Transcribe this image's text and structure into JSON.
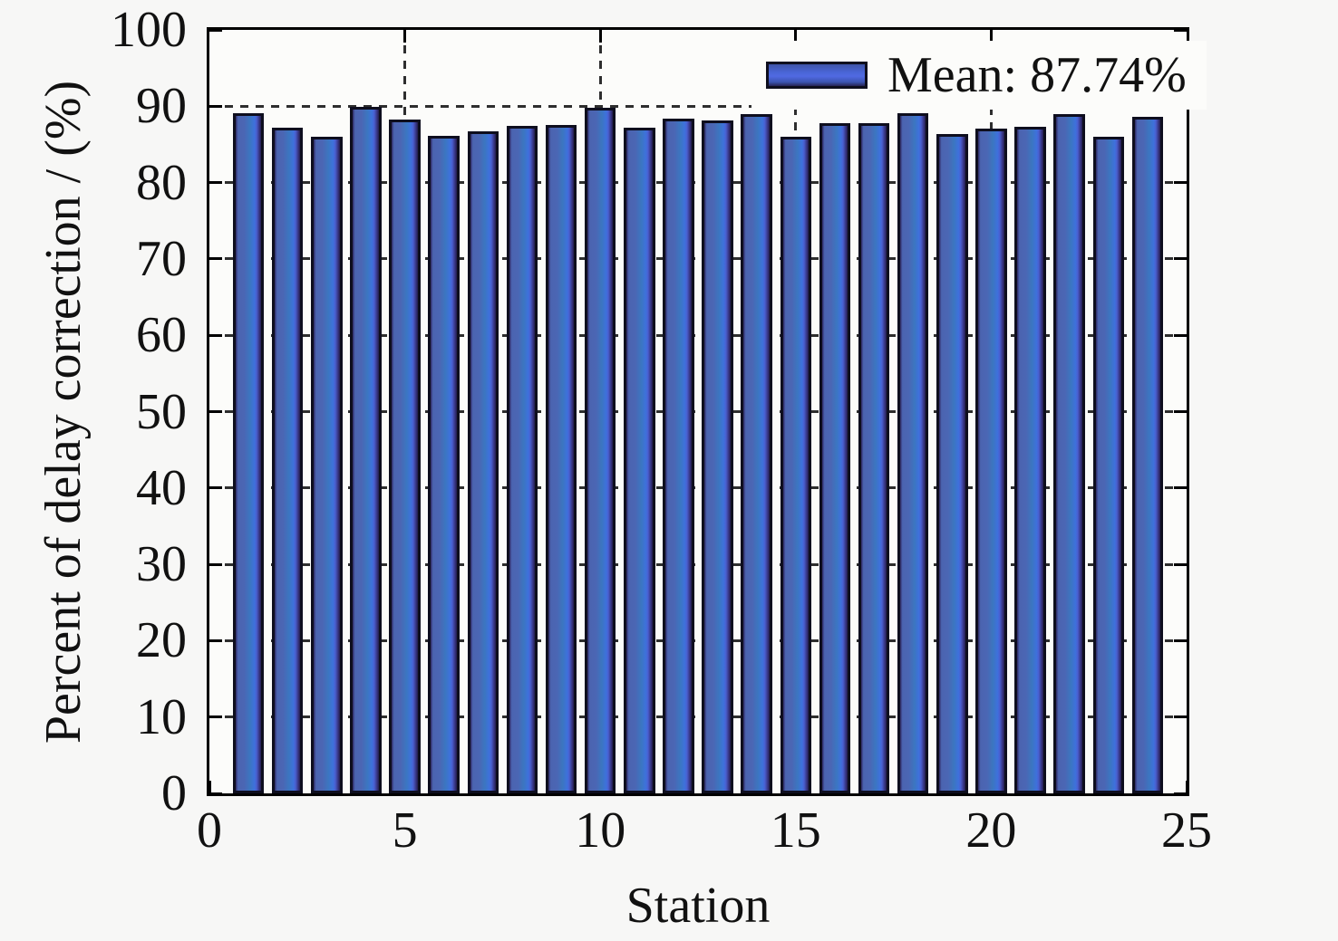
{
  "page_background": "#f7f7f6",
  "chart_data": {
    "type": "bar",
    "title": "",
    "xlabel": "Station",
    "ylabel": "Percent of delay correction / (%)",
    "xlim": [
      0,
      25
    ],
    "ylim": [
      0,
      100
    ],
    "x_ticks": [
      0,
      5,
      10,
      15,
      20,
      25
    ],
    "y_ticks": [
      0,
      10,
      20,
      30,
      40,
      50,
      60,
      70,
      80,
      90,
      100
    ],
    "grid": {
      "style": "dashed",
      "color": "#2e2e2e",
      "x_lines": [
        5,
        10,
        15,
        20
      ],
      "y_lines": [
        10,
        20,
        30,
        40,
        50,
        60,
        70,
        80,
        90
      ],
      "drawn_behind_bars": true
    },
    "bar_width_units": 0.8,
    "categories": [
      1,
      2,
      3,
      4,
      5,
      6,
      7,
      8,
      9,
      10,
      11,
      12,
      13,
      14,
      15,
      16,
      17,
      18,
      19,
      20,
      21,
      22,
      23,
      24
    ],
    "values": [
      89.1,
      87.2,
      86.0,
      89.9,
      88.2,
      86.1,
      86.7,
      87.4,
      87.6,
      89.8,
      87.2,
      88.4,
      88.1,
      89.0,
      86.0,
      87.8,
      87.8,
      89.1,
      86.4,
      87.1,
      87.3,
      89.0,
      86.0,
      88.6
    ],
    "mean": 87.74,
    "legend": {
      "label": "Mean: 87.74%",
      "position": "upper-right"
    },
    "colors": {
      "bar_edge": "#0e0e1e",
      "bar_fill_slate": "#4b64b0",
      "bar_fill_steel": "#3b76c0",
      "bar_fill_azure": "#3e71dc",
      "axis": "#000000",
      "grid": "#2e2e2e",
      "plot_background": "#fcfcfa",
      "page_background": "#f7f7f6",
      "text": "#111111"
    }
  }
}
